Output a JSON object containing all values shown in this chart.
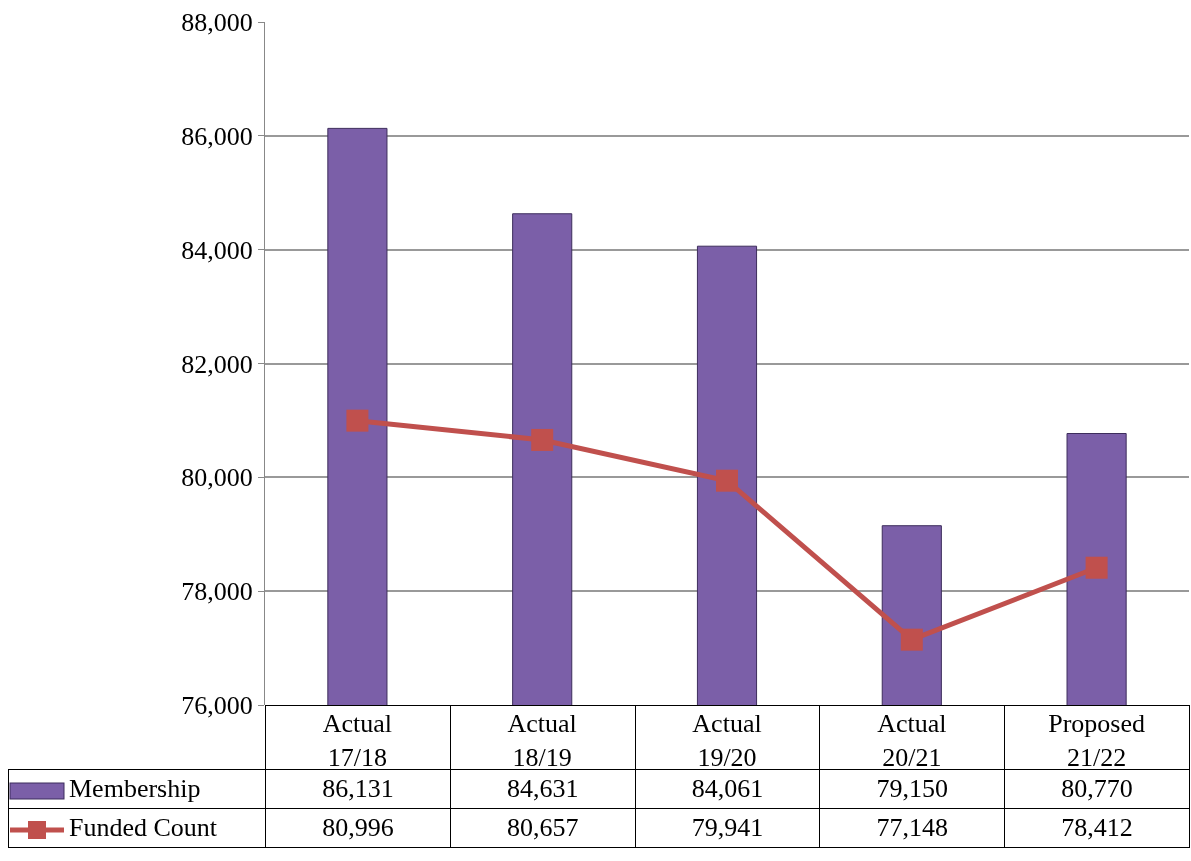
{
  "chart_data": {
    "type": "bar",
    "categories": [
      "Actual 17/18",
      "Actual 18/19",
      "Actual 19/20",
      "Actual 20/21",
      "Proposed 21/22"
    ],
    "series": [
      {
        "name": "Membership",
        "color": "#7b5fa8",
        "values": [
          86131,
          84631,
          84061,
          79150,
          80770
        ],
        "value_labels": [
          "86,131",
          "84,631",
          "84,061",
          "79,150",
          "80,770"
        ]
      },
      {
        "name": "Funded Count",
        "type": "line",
        "color": "#c0504d",
        "values": [
          80996,
          80657,
          79941,
          77148,
          78412
        ],
        "value_labels": [
          "80,996",
          "80,657",
          "79,941",
          "77,148",
          "78,412"
        ]
      }
    ],
    "ylim": [
      76000,
      88000
    ],
    "yticks": [
      {
        "value": 76000,
        "label": "76,000"
      },
      {
        "value": 78000,
        "label": "78,000"
      },
      {
        "value": 80000,
        "label": "80,000"
      },
      {
        "value": 82000,
        "label": "82,000"
      },
      {
        "value": 84000,
        "label": "84,000"
      },
      {
        "value": 86000,
        "label": "86,000"
      },
      {
        "value": 88000,
        "label": "88,000"
      }
    ],
    "grid": "y",
    "legend": "bottom left",
    "marker": "square",
    "line_style": "solid"
  }
}
